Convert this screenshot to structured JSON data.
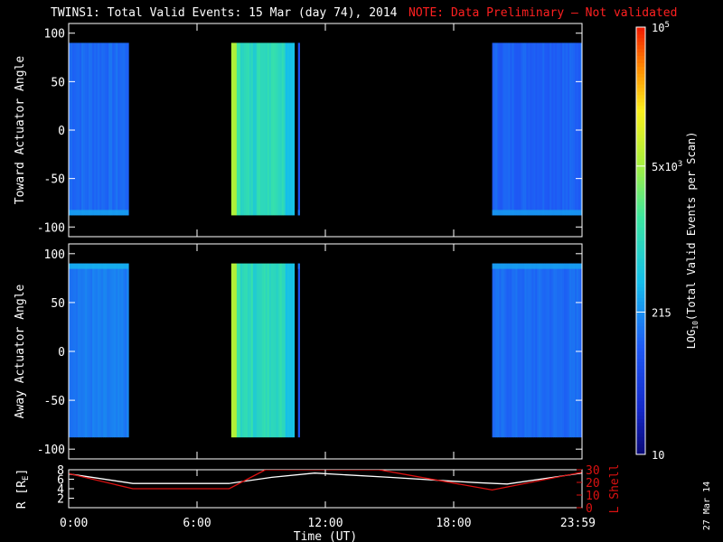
{
  "header": {
    "title": "TWINS1: Total Valid Events: 15 Mar (day  74), 2014",
    "note": "NOTE: Data Preliminary — Not validated"
  },
  "stamp": "27 Mar 14",
  "colors": {
    "background": "#000000",
    "foreground": "#ffffff",
    "note": "#ff2020",
    "ephemeris_R": "#ffffff",
    "ephemeris_L": "#dd1111"
  },
  "chart_data": [
    {
      "type": "heatmap",
      "panel": "toward",
      "ylabel": "Toward Actuator Angle",
      "ylim": [
        -110,
        110
      ],
      "yticks": [
        100,
        50,
        0,
        -50,
        -100
      ],
      "xlim": [
        0,
        24
      ],
      "angle_range": [
        -88,
        90
      ],
      "color_level": "log10 counts",
      "blocks": [
        {
          "start": 0.0,
          "end": 2.8,
          "mean": 2.1
        },
        {
          "start": 7.6,
          "end": 10.55,
          "mean": 3.1
        },
        {
          "start": 10.72,
          "end": 10.8,
          "mean": 1.9
        },
        {
          "start": 19.8,
          "end": 24.0,
          "mean": 2.05
        }
      ]
    },
    {
      "type": "heatmap",
      "panel": "away",
      "ylabel": "Away Actuator Angle",
      "ylim": [
        -110,
        110
      ],
      "yticks": [
        100,
        50,
        0,
        -50,
        -100
      ],
      "xlim": [
        0,
        24
      ],
      "angle_range": [
        -88,
        90
      ],
      "color_level": "log10 counts",
      "blocks": [
        {
          "start": 0.0,
          "end": 2.8,
          "mean": 2.2
        },
        {
          "start": 7.6,
          "end": 10.55,
          "mean": 3.15
        },
        {
          "start": 10.72,
          "end": 10.8,
          "mean": 1.9
        },
        {
          "start": 19.8,
          "end": 24.0,
          "mean": 2.1
        }
      ]
    },
    {
      "type": "line",
      "panel": "ephemeris",
      "xlabel": "Time (UT)",
      "xticks": [
        "0:00",
        "6:00",
        "12:00",
        "18:00",
        "23:59"
      ],
      "xtick_hours": [
        0,
        6,
        12,
        18,
        24
      ],
      "xlim": [
        0,
        24
      ],
      "ylabel_left": "R [R",
      "ylabel_left_sub": "E",
      "ylabel_left_end": "]",
      "ylabel_right": "L Shell",
      "yticks_left": [
        2,
        4,
        6,
        8
      ],
      "yticks_right": [
        0,
        10,
        20,
        30
      ],
      "ylim_left": [
        0,
        8
      ],
      "ylim_right": [
        0,
        30
      ],
      "series": [
        {
          "axis": "left",
          "x": [
            0,
            0.5,
            3.0,
            7.5,
            9.5,
            11.5,
            15.0,
            19.0,
            20.5,
            24.0
          ],
          "y": [
            7.1,
            6.8,
            5.1,
            5.1,
            6.4,
            7.3,
            6.4,
            5.3,
            5.0,
            7.3
          ]
        },
        {
          "axis": "right",
          "x": [
            0,
            0.5,
            3.0,
            7.5,
            9.2,
            14.5,
            19.8,
            24.0
          ],
          "y": [
            27,
            25,
            15,
            15,
            30,
            30,
            14,
            28
          ]
        }
      ]
    }
  ],
  "colorbar": {
    "label": "LOG",
    "label_sub": "10",
    "label_end": "(Total Valid Events per Scan)",
    "log_range": [
      1,
      5
    ],
    "ticks": [
      {
        "log": 5,
        "label": "10",
        "sup": "5"
      },
      {
        "log": 3.699,
        "label": "5x10",
        "sup": "3"
      },
      {
        "log": 2.332,
        "label": "215",
        "sup": ""
      },
      {
        "log": 1,
        "label": "10",
        "sup": ""
      }
    ]
  }
}
